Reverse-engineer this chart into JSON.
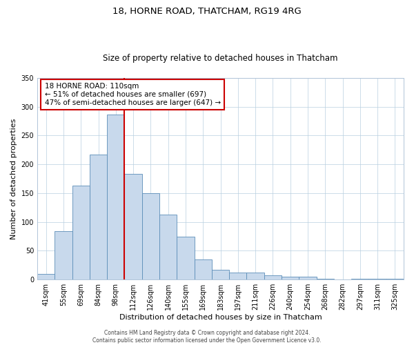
{
  "title": "18, HORNE ROAD, THATCHAM, RG19 4RG",
  "subtitle": "Size of property relative to detached houses in Thatcham",
  "xlabel": "Distribution of detached houses by size in Thatcham",
  "ylabel": "Number of detached properties",
  "bin_labels": [
    "41sqm",
    "55sqm",
    "69sqm",
    "84sqm",
    "98sqm",
    "112sqm",
    "126sqm",
    "140sqm",
    "155sqm",
    "169sqm",
    "183sqm",
    "197sqm",
    "211sqm",
    "226sqm",
    "240sqm",
    "254sqm",
    "268sqm",
    "282sqm",
    "297sqm",
    "311sqm",
    "325sqm"
  ],
  "bar_values": [
    10,
    84,
    163,
    217,
    287,
    183,
    150,
    113,
    75,
    35,
    17,
    12,
    12,
    8,
    5,
    5,
    2,
    0,
    1,
    1,
    2
  ],
  "bar_color": "#c8d9ec",
  "bar_edgecolor": "#5b8db8",
  "vline_x_index": 5,
  "vline_color": "#cc0000",
  "ylim": [
    0,
    350
  ],
  "yticks": [
    0,
    50,
    100,
    150,
    200,
    250,
    300,
    350
  ],
  "annotation_title": "18 HORNE ROAD: 110sqm",
  "annotation_line1": "← 51% of detached houses are smaller (697)",
  "annotation_line2": "47% of semi-detached houses are larger (647) →",
  "annotation_box_edgecolor": "#cc0000",
  "footer_line1": "Contains HM Land Registry data © Crown copyright and database right 2024.",
  "footer_line2": "Contains public sector information licensed under the Open Government Licence v3.0.",
  "title_fontsize": 9.5,
  "subtitle_fontsize": 8.5,
  "axis_label_fontsize": 8,
  "tick_fontsize": 7,
  "annotation_fontsize": 7.5,
  "footer_fontsize": 5.5
}
